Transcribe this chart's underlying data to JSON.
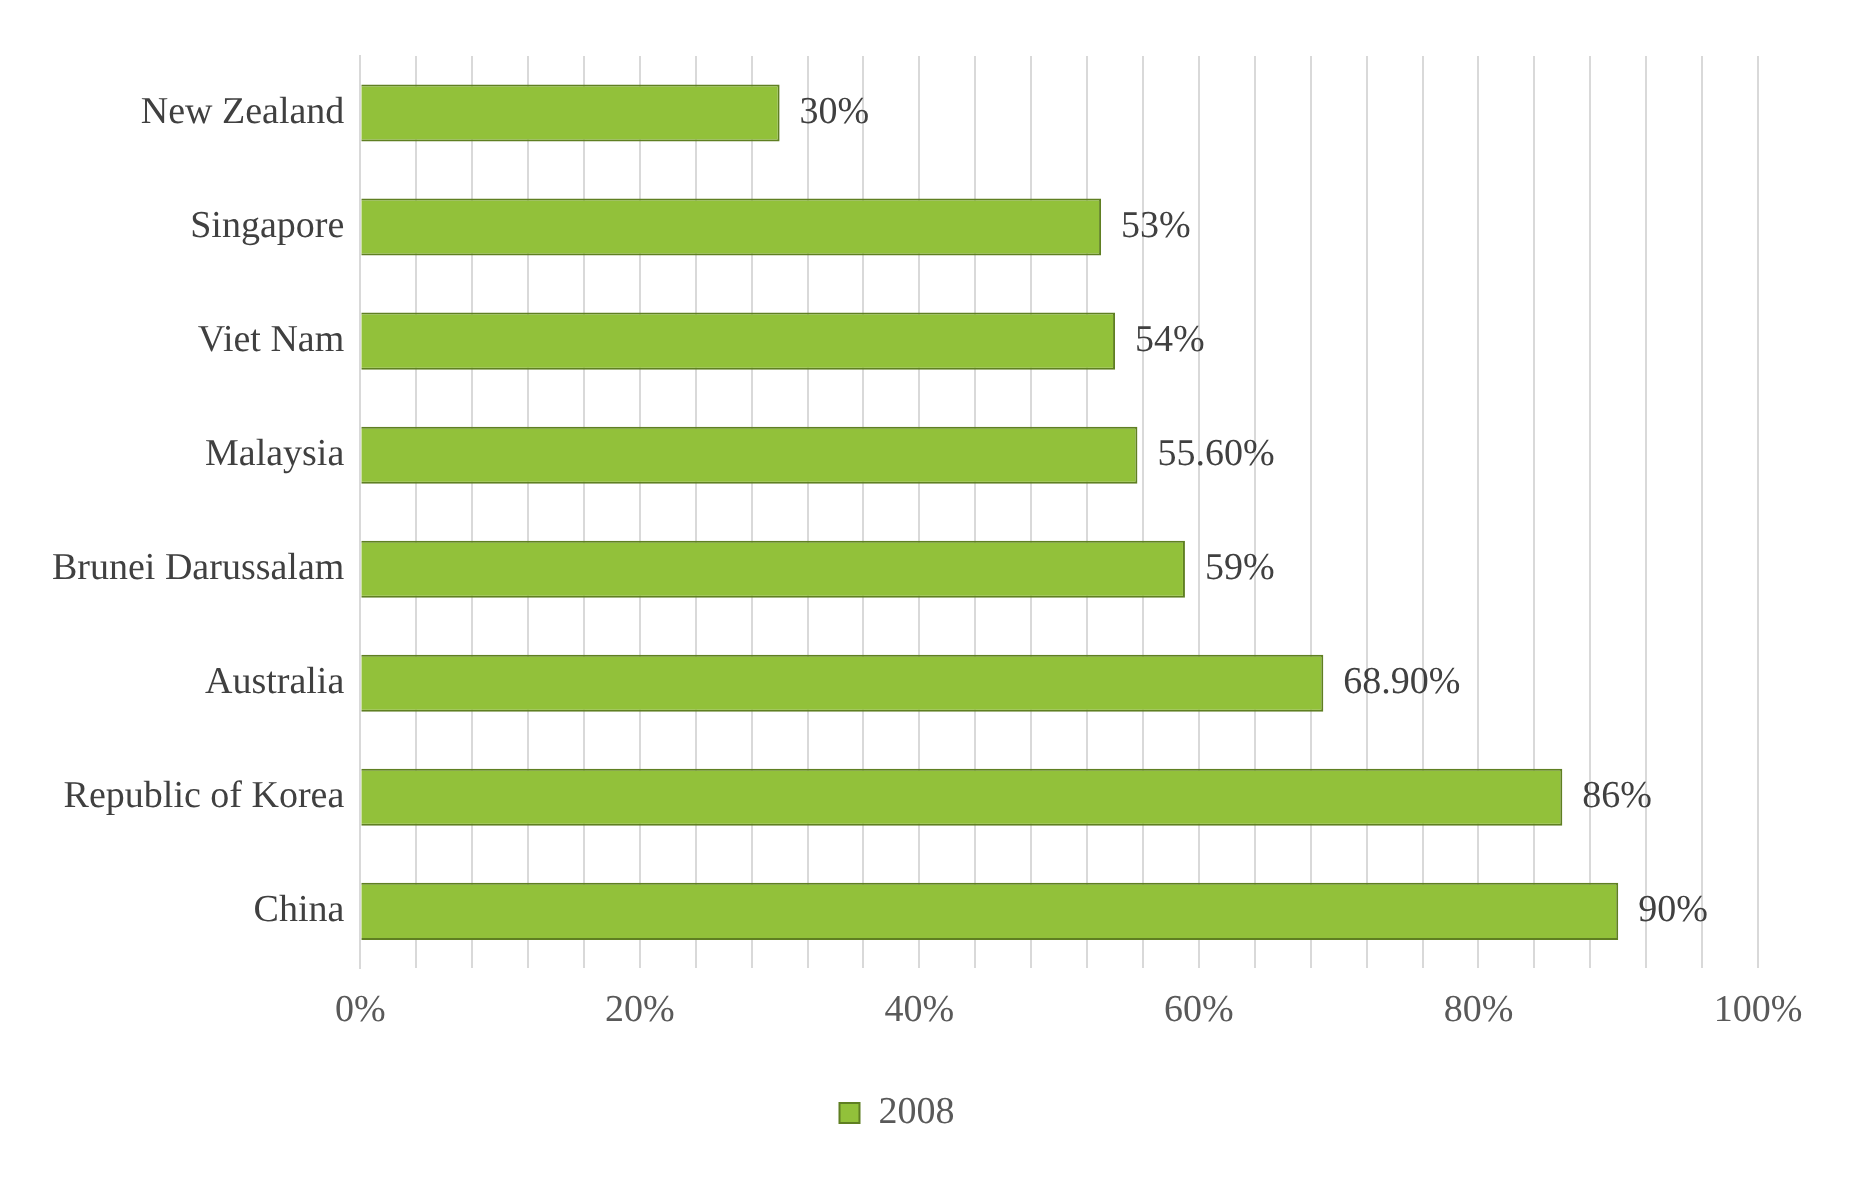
{
  "chart_data": {
    "type": "bar",
    "orientation": "horizontal",
    "categories": [
      "New Zealand",
      "Singapore",
      "Viet Nam",
      "Malaysia",
      "Brunei Darussalam",
      "Australia",
      "Republic of Korea",
      "China"
    ],
    "series": [
      {
        "name": "2008",
        "color": "#92c13a",
        "values": [
          30,
          53,
          54,
          55.6,
          59,
          68.9,
          86,
          90
        ],
        "value_labels": [
          "30%",
          "53%",
          "54%",
          "55.60%",
          "59%",
          "68.90%",
          "86%",
          "90%"
        ]
      }
    ],
    "xlim": [
      0,
      100
    ],
    "xticks": [
      {
        "value": 0,
        "label": "0%"
      },
      {
        "value": 4,
        "label": null
      },
      {
        "value": 8,
        "label": null
      },
      {
        "value": 12,
        "label": null
      },
      {
        "value": 16,
        "label": null
      },
      {
        "value": 20,
        "label": "20%"
      },
      {
        "value": 24,
        "label": null
      },
      {
        "value": 28,
        "label": null
      },
      {
        "value": 32,
        "label": null
      },
      {
        "value": 36,
        "label": null
      },
      {
        "value": 40,
        "label": "40%"
      },
      {
        "value": 44,
        "label": null
      },
      {
        "value": 48,
        "label": null
      },
      {
        "value": 52,
        "label": null
      },
      {
        "value": 56,
        "label": null
      },
      {
        "value": 60,
        "label": "60%"
      },
      {
        "value": 64,
        "label": null
      },
      {
        "value": 68,
        "label": null
      },
      {
        "value": 72,
        "label": null
      },
      {
        "value": 76,
        "label": null
      },
      {
        "value": 80,
        "label": "80%"
      },
      {
        "value": 84,
        "label": null
      },
      {
        "value": 88,
        "label": null
      },
      {
        "value": 92,
        "label": null
      },
      {
        "value": 96,
        "label": null
      },
      {
        "value": 100,
        "label": "100%"
      }
    ],
    "grid": "x",
    "legend": "bottom"
  }
}
